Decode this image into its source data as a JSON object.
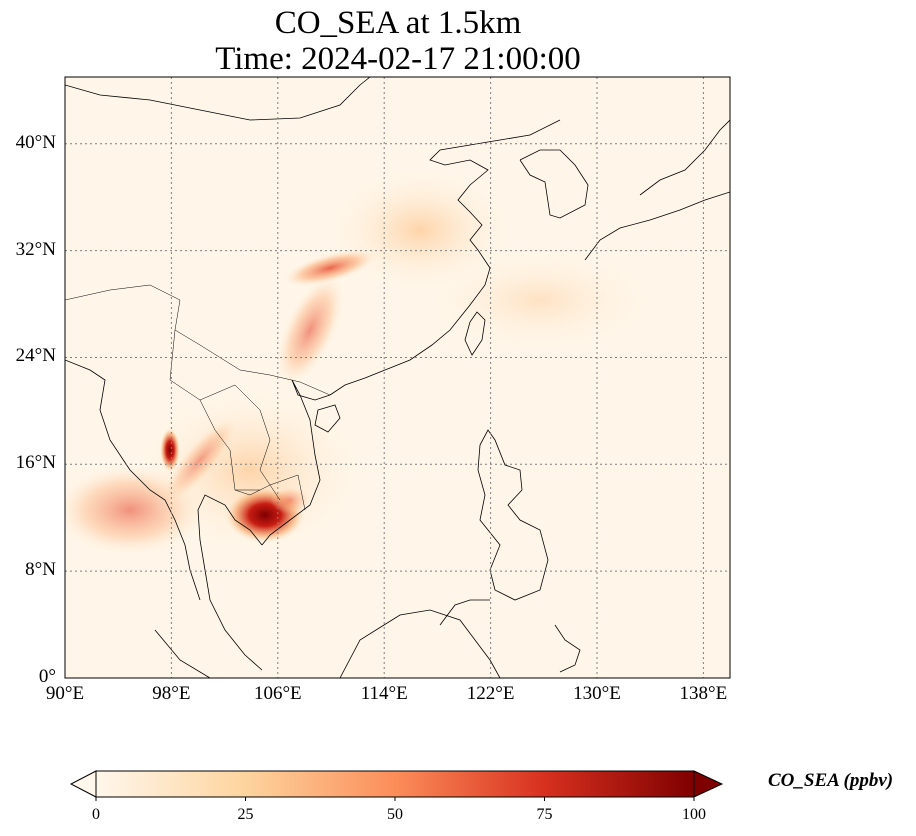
{
  "title": {
    "line1": "CO_SEA at 1.5km",
    "line2": "Time: 2024-02-17 21:00:00"
  },
  "map": {
    "projection": "PlateCarree",
    "lon_range": [
      90,
      140
    ],
    "lat_range": [
      0,
      45
    ],
    "gridlines": "dotted",
    "lat_ticks": [
      "0°",
      "8°N",
      "16°N",
      "24°N",
      "32°N",
      "40°N"
    ],
    "lat_values": [
      0,
      8,
      16,
      24,
      32,
      40
    ],
    "lon_ticks": [
      "90°E",
      "98°E",
      "106°E",
      "114°E",
      "122°E",
      "130°E",
      "138°E"
    ],
    "lon_values": [
      90,
      98,
      106,
      114,
      122,
      130,
      138
    ]
  },
  "colorbar": {
    "label": "CO_SEA (ppbv)",
    "colormap": "OrRd",
    "range": [
      0,
      100
    ],
    "ticks": [
      "0",
      "25",
      "50",
      "75",
      "100"
    ],
    "extend": "both",
    "colors": [
      "#fff7ec",
      "#fdd49e",
      "#fc8d59",
      "#d7301f",
      "#7f0000"
    ]
  }
}
